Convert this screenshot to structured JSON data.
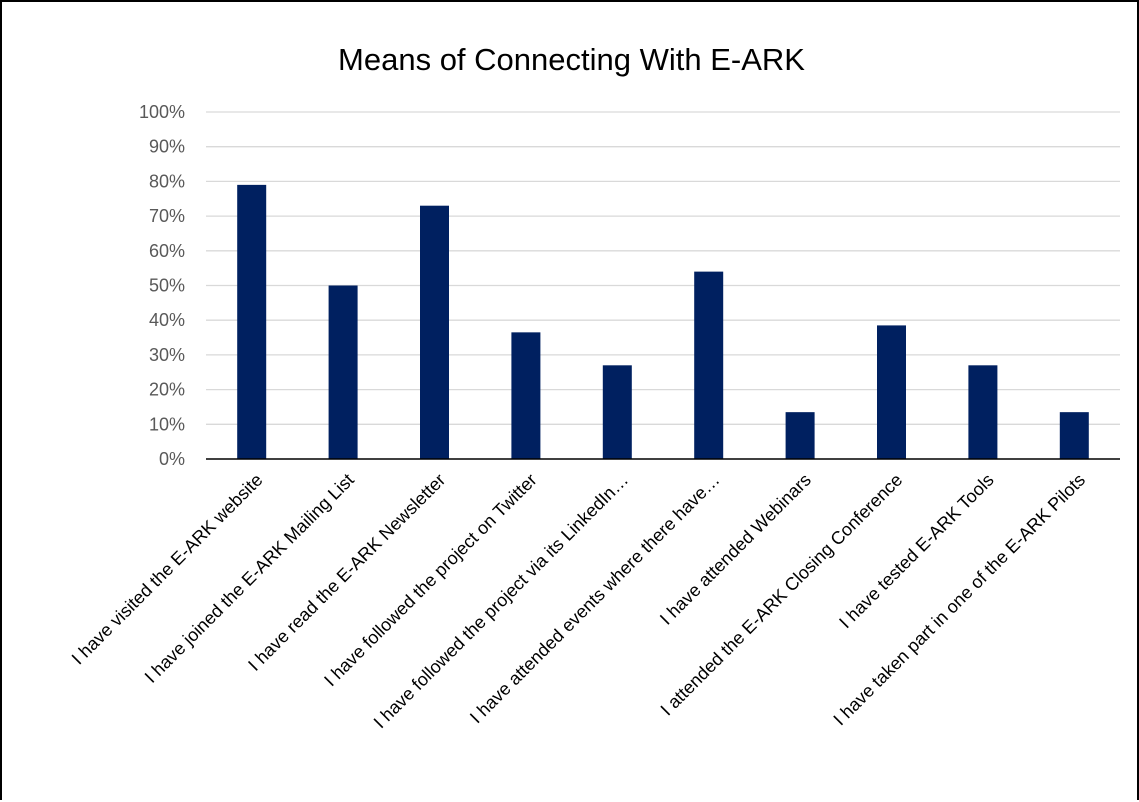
{
  "chart_data": {
    "type": "bar",
    "title": "Means of Connecting With E-ARK",
    "xlabel": "",
    "ylabel": "",
    "ylim": [
      0,
      1
    ],
    "yticks": [
      "0%",
      "10%",
      "20%",
      "30%",
      "40%",
      "50%",
      "60%",
      "70%",
      "80%",
      "90%",
      "100%"
    ],
    "grid": true,
    "legend": "none",
    "bar_color": "#002060",
    "categories": [
      "I have visited the E-ARK website",
      "I have joined the E-ARK Mailing List",
      "I have read the E-ARK Newsletter",
      "I have followed the project on Twitter",
      "I have followed the project via its LinkedIn…",
      "I have attended events where there have…",
      "I have attended Webinars",
      "I attended the E-ARK Closing Conference",
      "I have tested E-ARK Tools",
      "I have taken part in one of the E-ARK Pilots"
    ],
    "values": [
      0.79,
      0.5,
      0.73,
      0.365,
      0.27,
      0.54,
      0.135,
      0.385,
      0.27,
      0.135
    ]
  }
}
